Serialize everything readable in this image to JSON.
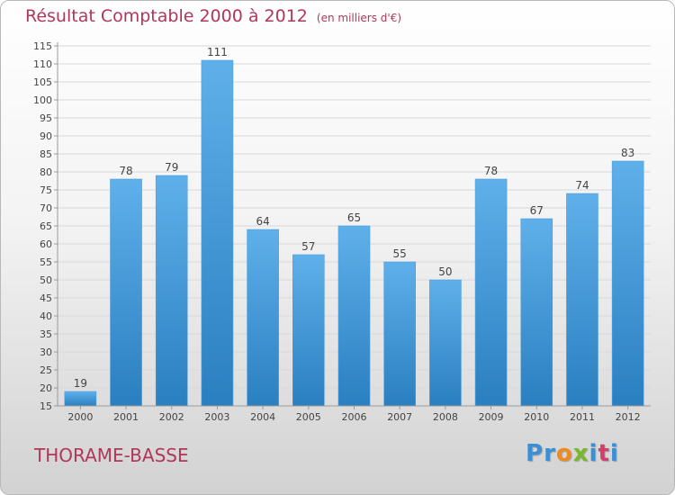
{
  "colors": {
    "accent": "#b0365a",
    "bar_light": "#5fb0ea",
    "bar_dark": "#2a7fc0",
    "grid": "#d8d8d8",
    "axis_text": "#444444"
  },
  "footer": {
    "place": "THORAME-BASSE",
    "brand_letters": [
      {
        "char": "P",
        "color": "#3a8fd6"
      },
      {
        "char": "r",
        "color": "#3a8fd6"
      },
      {
        "char": "o",
        "color": "#f08a1c"
      },
      {
        "char": "x",
        "color": "#7ab82b"
      },
      {
        "char": "i",
        "color": "#3a8fd6"
      },
      {
        "char": "t",
        "color": "#d23f6a"
      },
      {
        "char": "i",
        "color": "#3a8fd6"
      }
    ]
  },
  "chart_data": {
    "type": "bar",
    "title": "Résultat Comptable 2000 à 2012",
    "subtitle": "(en milliers d'€)",
    "xlabel": "",
    "ylabel": "",
    "categories": [
      "2000",
      "2001",
      "2002",
      "2003",
      "2004",
      "2005",
      "2006",
      "2007",
      "2008",
      "2009",
      "2010",
      "2011",
      "2012"
    ],
    "values": [
      19,
      78,
      79,
      111,
      64,
      57,
      65,
      55,
      50,
      78,
      67,
      74,
      83
    ],
    "ylim": [
      15,
      115
    ],
    "ytick_step": 5,
    "grid": true
  }
}
